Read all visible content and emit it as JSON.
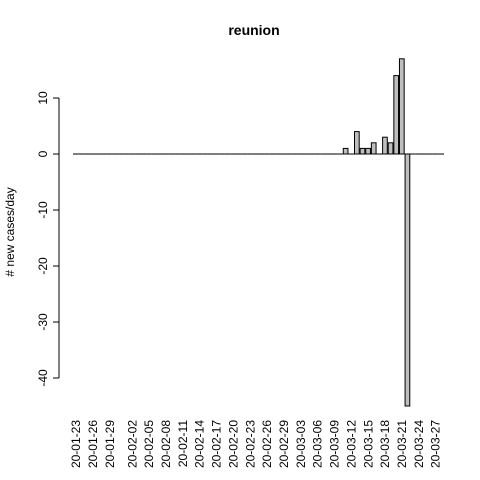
{
  "chart_data": {
    "type": "bar",
    "title": "reunion",
    "xlabel": "",
    "ylabel": "# new cases/day",
    "ylim": [
      -45,
      17
    ],
    "yticks": [
      10,
      0,
      -10,
      -20,
      -30,
      -40
    ],
    "xtick_labels": [
      "20-01-23",
      "20-01-26",
      "20-01-29",
      "20-02-02",
      "20-02-05",
      "20-02-08",
      "20-02-11",
      "20-02-14",
      "20-02-17",
      "20-02-20",
      "20-02-23",
      "20-02-26",
      "20-02-29",
      "20-03-03",
      "20-03-06",
      "20-03-09",
      "20-03-12",
      "20-03-15",
      "20-03-18",
      "20-03-21",
      "20-03-24",
      "20-03-27"
    ],
    "categories": [
      "20-01-23",
      "20-01-24",
      "20-01-25",
      "20-01-26",
      "20-01-27",
      "20-01-28",
      "20-01-29",
      "20-01-30",
      "20-01-31",
      "20-02-01",
      "20-02-02",
      "20-02-03",
      "20-02-04",
      "20-02-05",
      "20-02-06",
      "20-02-07",
      "20-02-08",
      "20-02-09",
      "20-02-10",
      "20-02-11",
      "20-02-12",
      "20-02-13",
      "20-02-14",
      "20-02-15",
      "20-02-16",
      "20-02-17",
      "20-02-18",
      "20-02-19",
      "20-02-20",
      "20-02-21",
      "20-02-22",
      "20-02-23",
      "20-02-24",
      "20-02-25",
      "20-02-26",
      "20-02-27",
      "20-02-28",
      "20-02-29",
      "20-03-01",
      "20-03-02",
      "20-03-03",
      "20-03-04",
      "20-03-05",
      "20-03-06",
      "20-03-07",
      "20-03-08",
      "20-03-09",
      "20-03-10",
      "20-03-11",
      "20-03-12",
      "20-03-13",
      "20-03-14",
      "20-03-15",
      "20-03-16",
      "20-03-17",
      "20-03-18",
      "20-03-19",
      "20-03-20",
      "20-03-21",
      "20-03-22",
      "20-03-23",
      "20-03-24",
      "20-03-25",
      "20-03-26",
      "20-03-27",
      "20-03-28"
    ],
    "values": [
      0,
      0,
      0,
      0,
      0,
      0,
      0,
      0,
      0,
      0,
      0,
      0,
      0,
      0,
      0,
      0,
      0,
      0,
      0,
      0,
      0,
      0,
      0,
      0,
      0,
      0,
      0,
      0,
      0,
      0,
      0,
      0,
      0,
      0,
      0,
      0,
      0,
      0,
      0,
      0,
      0,
      0,
      0,
      0,
      0,
      0,
      0,
      0,
      1,
      0,
      4,
      1,
      1,
      2,
      0,
      3,
      2,
      14,
      17,
      -45,
      0,
      0,
      0,
      0,
      0,
      0
    ],
    "bar_fill": "#bebebe",
    "bar_stroke": "#000000"
  }
}
